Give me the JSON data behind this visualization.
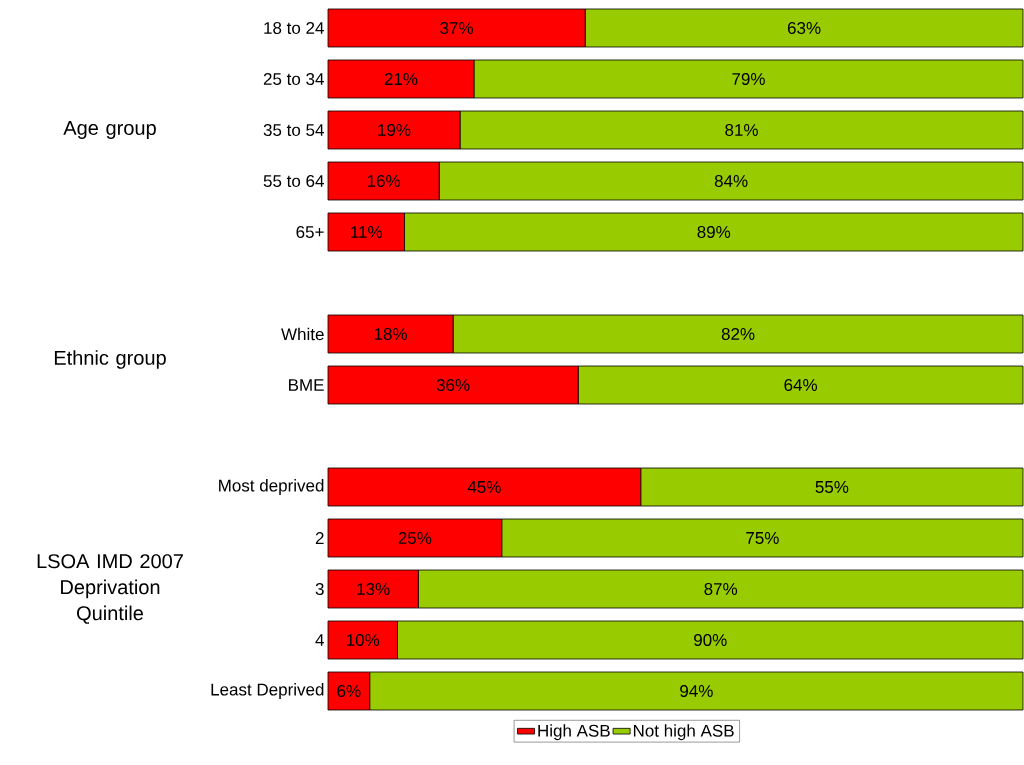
{
  "chart_data": {
    "type": "bar",
    "orientation": "horizontal",
    "stacked": true,
    "categories": [
      "18 to 24",
      "25 to 34",
      "35 to 54",
      "55 to 64",
      "65+",
      null,
      "White",
      "BME",
      null,
      "Most deprived",
      "2",
      "3",
      "4",
      "Least Deprived"
    ],
    "series": [
      {
        "name": "High ASB",
        "color": "#ff0000",
        "values": [
          37,
          21,
          19,
          16,
          11,
          null,
          18,
          36,
          null,
          45,
          25,
          13,
          10,
          6
        ],
        "value_labels": [
          "37%",
          "21%",
          "19%",
          "16%",
          "11%",
          null,
          "18%",
          "36%",
          null,
          "45%",
          "25%",
          "13%",
          "10%",
          "6%"
        ]
      },
      {
        "name": "Not high ASB",
        "color": "#99cc00",
        "values": [
          63,
          79,
          81,
          84,
          89,
          null,
          82,
          64,
          null,
          55,
          75,
          87,
          90,
          94
        ],
        "value_labels": [
          "63%",
          "79%",
          "81%",
          "84%",
          "89%",
          null,
          "82%",
          "64%",
          null,
          "55%",
          "75%",
          "87%",
          "90%",
          "94%"
        ]
      }
    ],
    "tick_labels": "y",
    "legend": "bottom",
    "annotations": [
      "Age group",
      "Ethnic group",
      "LSOA IMD 2007 Deprivation Quintile"
    ]
  }
}
